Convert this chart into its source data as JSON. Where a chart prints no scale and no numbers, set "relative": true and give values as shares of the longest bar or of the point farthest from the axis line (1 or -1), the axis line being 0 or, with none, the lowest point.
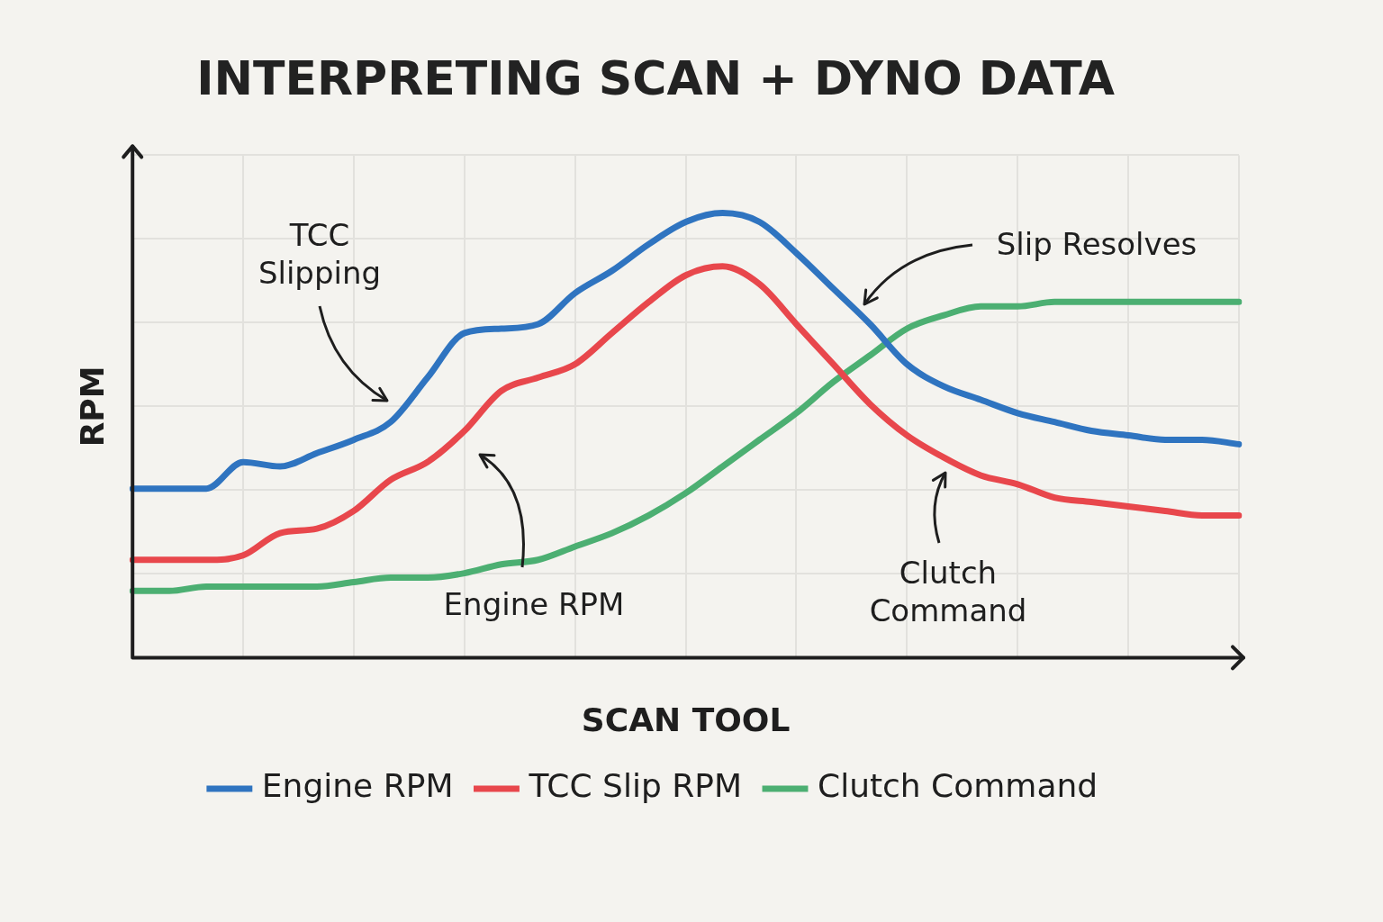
{
  "chart_data": {
    "type": "line",
    "title": "INTERPRETING SCAN + DYNO DATA",
    "xlabel": "SCAN TOOL",
    "ylabel": "RPM",
    "relative": true,
    "grid": true,
    "legend": "bottom",
    "marker": "none",
    "line_style": "solid",
    "categories": [
      null,
      null,
      null,
      null,
      null,
      null,
      null,
      null,
      null,
      null,
      null,
      null,
      null,
      null,
      null,
      null,
      null,
      null,
      null,
      null,
      null,
      null,
      null,
      null,
      null,
      null,
      null,
      null,
      null,
      null,
      null
    ],
    "series": [
      {
        "name": "Engine RPM",
        "color": "#2f74c0",
        "values": [
          0.38,
          0.38,
          0.38,
          0.44,
          0.43,
          0.46,
          0.49,
          0.53,
          0.63,
          0.73,
          0.74,
          0.75,
          0.82,
          0.87,
          0.93,
          0.98,
          1.0,
          0.98,
          0.91,
          0.83,
          0.75,
          0.66,
          0.61,
          0.58,
          0.55,
          0.53,
          0.51,
          0.5,
          0.49,
          0.49,
          0.48
        ]
      },
      {
        "name": "TCC Slip RPM",
        "color": "#e8474c",
        "values": [
          0.22,
          0.22,
          0.22,
          0.23,
          0.28,
          0.29,
          0.33,
          0.4,
          0.44,
          0.51,
          0.6,
          0.63,
          0.66,
          0.73,
          0.8,
          0.86,
          0.88,
          0.84,
          0.75,
          0.66,
          0.57,
          0.5,
          0.45,
          0.41,
          0.39,
          0.36,
          0.35,
          0.34,
          0.33,
          0.32,
          0.32
        ]
      },
      {
        "name": "Clutch Command",
        "color": "#4caf72",
        "values": [
          0.15,
          0.15,
          0.16,
          0.16,
          0.16,
          0.16,
          0.17,
          0.18,
          0.18,
          0.19,
          0.21,
          0.22,
          0.25,
          0.28,
          0.32,
          0.37,
          0.43,
          0.49,
          0.55,
          0.62,
          0.68,
          0.74,
          0.77,
          0.79,
          0.79,
          0.8,
          0.8,
          0.8,
          0.8,
          0.8,
          0.8
        ]
      }
    ],
    "annotations": [
      "TCC Slipping",
      "Slip Resolves",
      "Engine RPM",
      "Clutch Command"
    ]
  }
}
